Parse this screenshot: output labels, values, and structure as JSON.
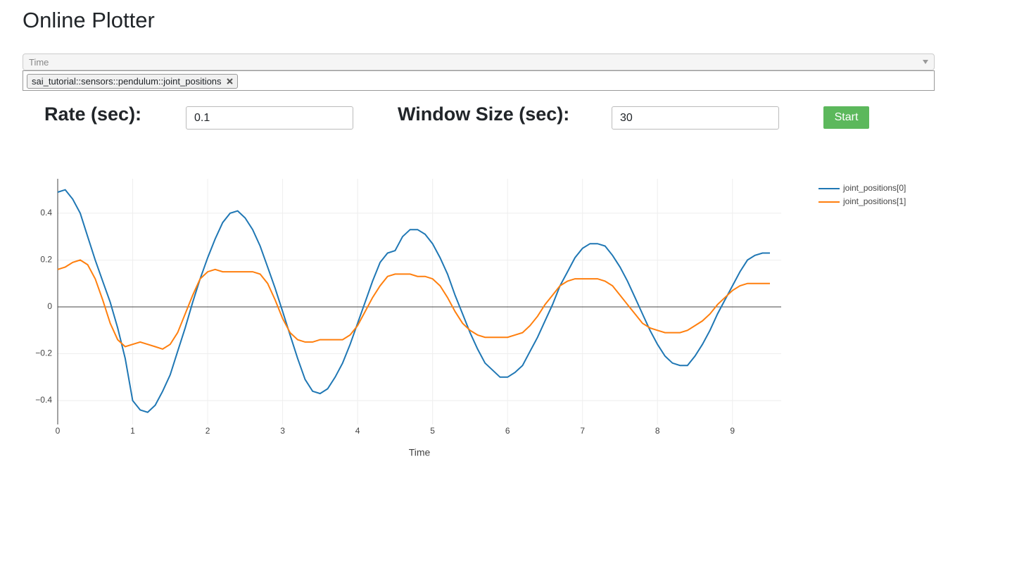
{
  "header": {
    "title": "Online Plotter"
  },
  "selector": {
    "x_placeholder": "Time",
    "chips": [
      "sai_tutorial::sensors::pendulum::joint_positions"
    ]
  },
  "controls": {
    "rate_label": "Rate (sec):",
    "rate_value": "0.1",
    "window_label": "Window Size (sec):",
    "window_value": "30",
    "start_button": "Start"
  },
  "chart_data": {
    "type": "line",
    "x_label": "Time",
    "x": [
      0,
      0.1,
      0.2,
      0.3,
      0.4,
      0.5,
      0.6,
      0.7,
      0.8,
      0.9,
      1,
      1.1,
      1.2,
      1.3,
      1.4,
      1.5,
      1.6,
      1.7,
      1.8,
      1.9,
      2,
      2.1,
      2.2,
      2.3,
      2.4,
      2.5,
      2.6,
      2.7,
      2.8,
      2.9,
      3,
      3.1,
      3.2,
      3.3,
      3.4,
      3.5,
      3.6,
      3.7,
      3.8,
      3.9,
      4,
      4.1,
      4.2,
      4.3,
      4.4,
      4.5,
      4.6,
      4.7,
      4.8,
      4.9,
      5,
      5.1,
      5.2,
      5.3,
      5.4,
      5.5,
      5.6,
      5.7,
      5.8,
      5.9,
      6,
      6.1,
      6.2,
      6.3,
      6.4,
      6.5,
      6.6,
      6.7,
      6.8,
      6.9,
      7,
      7.1,
      7.2,
      7.3,
      7.4,
      7.5,
      7.6,
      7.7,
      7.8,
      7.9,
      8,
      8.1,
      8.2,
      8.3,
      8.4,
      8.5,
      8.6,
      8.7,
      8.8,
      8.9,
      9,
      9.1,
      9.2,
      9.3,
      9.4,
      9.5
    ],
    "series": [
      {
        "name": "joint_positions[0]",
        "color": "#1f77b4",
        "values": [
          0.49,
          0.5,
          0.46,
          0.4,
          0.3,
          0.2,
          0.11,
          0.02,
          -0.09,
          -0.22,
          -0.4,
          -0.44,
          -0.45,
          -0.42,
          -0.36,
          -0.29,
          -0.19,
          -0.09,
          0.02,
          0.12,
          0.21,
          0.29,
          0.36,
          0.4,
          0.41,
          0.38,
          0.33,
          0.26,
          0.17,
          0.08,
          -0.02,
          -0.12,
          -0.22,
          -0.31,
          -0.36,
          -0.37,
          -0.35,
          -0.3,
          -0.24,
          -0.16,
          -0.07,
          0.02,
          0.11,
          0.19,
          0.23,
          0.24,
          0.3,
          0.33,
          0.33,
          0.31,
          0.27,
          0.21,
          0.14,
          0.05,
          -0.03,
          -0.11,
          -0.18,
          -0.24,
          -0.27,
          -0.3,
          -0.3,
          -0.28,
          -0.25,
          -0.19,
          -0.13,
          -0.06,
          0.01,
          0.09,
          0.15,
          0.21,
          0.25,
          0.27,
          0.27,
          0.26,
          0.22,
          0.17,
          0.11,
          0.04,
          -0.03,
          -0.1,
          -0.16,
          -0.21,
          -0.24,
          -0.25,
          -0.25,
          -0.21,
          -0.16,
          -0.1,
          -0.03,
          0.03,
          0.09,
          0.15,
          0.2,
          0.22,
          0.23,
          0.23
        ]
      },
      {
        "name": "joint_positions[1]",
        "color": "#ff7f0e",
        "values": [
          0.16,
          0.17,
          0.19,
          0.2,
          0.18,
          0.12,
          0.03,
          -0.07,
          -0.14,
          -0.17,
          -0.16,
          -0.15,
          -0.16,
          -0.17,
          -0.18,
          -0.16,
          -0.11,
          -0.03,
          0.05,
          0.12,
          0.15,
          0.16,
          0.15,
          0.15,
          0.15,
          0.15,
          0.15,
          0.14,
          0.1,
          0.03,
          -0.05,
          -0.11,
          -0.14,
          -0.15,
          -0.15,
          -0.14,
          -0.14,
          -0.14,
          -0.14,
          -0.12,
          -0.08,
          -0.02,
          0.04,
          0.09,
          0.13,
          0.14,
          0.14,
          0.14,
          0.13,
          0.13,
          0.12,
          0.09,
          0.04,
          -0.02,
          -0.07,
          -0.1,
          -0.12,
          -0.13,
          -0.13,
          -0.13,
          -0.13,
          -0.12,
          -0.11,
          -0.08,
          -0.04,
          0.01,
          0.05,
          0.09,
          0.11,
          0.12,
          0.12,
          0.12,
          0.12,
          0.11,
          0.09,
          0.05,
          0.01,
          -0.03,
          -0.07,
          -0.09,
          -0.1,
          -0.11,
          -0.11,
          -0.11,
          -0.1,
          -0.08,
          -0.06,
          -0.03,
          0.01,
          0.04,
          0.07,
          0.09,
          0.1,
          0.1,
          0.1,
          0.1
        ]
      }
    ],
    "xlim": [
      0,
      9.65
    ],
    "xticks": [
      0,
      1,
      2,
      3,
      4,
      5,
      6,
      7,
      8,
      9
    ],
    "ylim": [
      -0.502,
      0.547
    ],
    "yticks": [
      {
        "value": -0.4,
        "label": "−0.4"
      },
      {
        "value": -0.2,
        "label": "−0.2"
      },
      0,
      0.2,
      0.4
    ],
    "grid": true,
    "zero_line": true,
    "legend": "right"
  }
}
